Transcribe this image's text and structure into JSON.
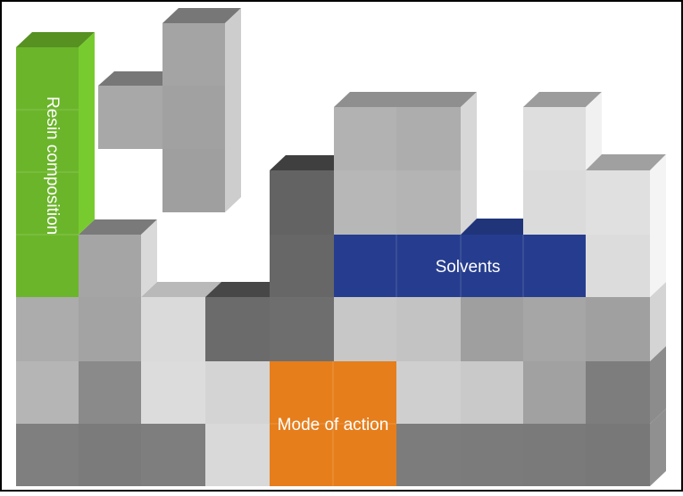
{
  "diagram": {
    "labels": {
      "resin": "Resin composition",
      "solvents": "Solvents",
      "mode": "Mode of action"
    },
    "colors": {
      "resin_green": "#6bb52a",
      "solvents_blue": "#263d8f",
      "mode_orange": "#e67e1c",
      "label_text": "#ffffff",
      "frame": "#000000"
    }
  }
}
